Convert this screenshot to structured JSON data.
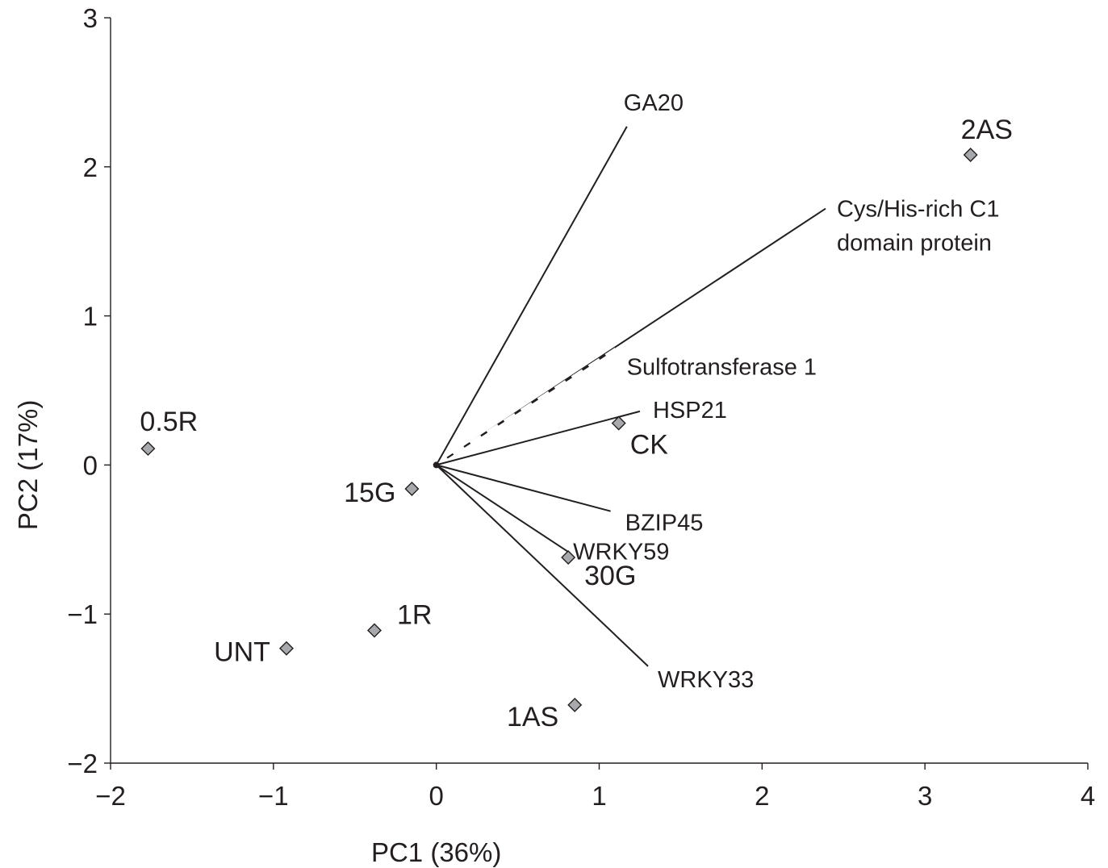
{
  "chart_data": {
    "type": "scatter",
    "xlabel": "PC1 (36%)",
    "ylabel": "PC2 (17%)",
    "xlim": [
      -2,
      4
    ],
    "ylim": [
      -2,
      3
    ],
    "x_ticks": [
      -2,
      -1,
      0,
      1,
      2,
      3,
      4
    ],
    "y_ticks": [
      -2,
      -1,
      0,
      1,
      2,
      3
    ],
    "x_tick_labels": [
      "−2",
      "−1",
      "0",
      "1",
      "2",
      "3",
      "4"
    ],
    "y_tick_labels": [
      "−2",
      "−1",
      "0",
      "1",
      "2",
      "3"
    ],
    "grid": false,
    "legend": "none",
    "marker_color": "#a7a9ac",
    "samples": [
      {
        "label": "2AS",
        "x": 3.28,
        "y": 2.08
      },
      {
        "label": "0.5R",
        "x": -1.77,
        "y": 0.11
      },
      {
        "label": "CK",
        "x": 1.12,
        "y": 0.28
      },
      {
        "label": "15G",
        "x": -0.15,
        "y": -0.16
      },
      {
        "label": "30G",
        "x": 0.81,
        "y": -0.62
      },
      {
        "label": "1R",
        "x": -0.38,
        "y": -1.11
      },
      {
        "label": "UNT",
        "x": -0.92,
        "y": -1.23
      },
      {
        "label": "1AS",
        "x": 0.85,
        "y": -1.61
      }
    ],
    "loadings": [
      {
        "label": "GA20",
        "x": 1.17,
        "y": 2.27,
        "style": "solid"
      },
      {
        "label": "Cys/His-rich C1 domain protein",
        "label_lines": [
          "Cys/His-rich C1",
          "domain protein"
        ],
        "x": 2.39,
        "y": 1.72,
        "style": "solid"
      },
      {
        "label": "Sulfotransferase 1",
        "x": 1.1,
        "y": 0.78,
        "style": "dashed"
      },
      {
        "label": "HSP21",
        "x": 1.25,
        "y": 0.36,
        "style": "solid"
      },
      {
        "label": "BZIP45",
        "x": 1.07,
        "y": -0.31,
        "style": "solid"
      },
      {
        "label": "WRKY59",
        "x": 0.82,
        "y": -0.59,
        "style": "solid"
      },
      {
        "label": "WRKY33",
        "x": 1.3,
        "y": -1.35,
        "style": "solid"
      }
    ]
  }
}
